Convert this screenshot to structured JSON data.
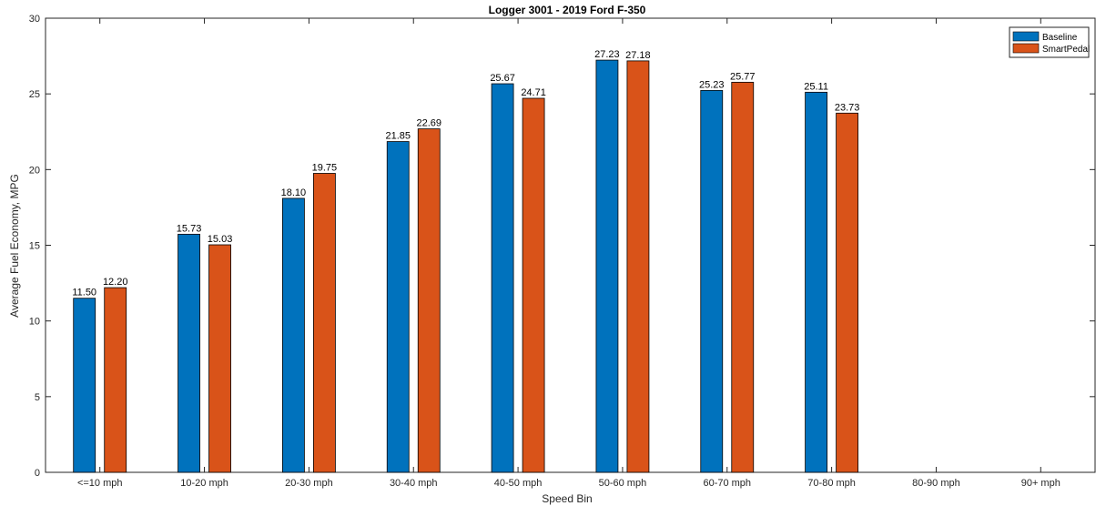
{
  "chart_data": {
    "type": "bar",
    "title": "Logger 3001 - 2019 Ford F-350",
    "xlabel": "Speed Bin",
    "ylabel": "Average Fuel Economy, MPG",
    "ylim": [
      0,
      30
    ],
    "yticks": [
      0,
      5,
      10,
      15,
      20,
      25,
      30
    ],
    "grid": false,
    "legend_position": "top-right",
    "categories": [
      "<=10 mph",
      "10-20 mph",
      "20-30 mph",
      "30-40 mph",
      "40-50 mph",
      "50-60 mph",
      "60-70 mph",
      "70-80 mph",
      "80-90 mph",
      "90+ mph"
    ],
    "series": [
      {
        "name": "Baseline",
        "color": "#0072BD",
        "values": [
          11.5,
          15.73,
          18.1,
          21.85,
          25.67,
          27.23,
          25.23,
          25.11,
          null,
          null
        ],
        "labels": [
          "11.50",
          "15.73",
          "18.10",
          "21.85",
          "25.67",
          "27.23",
          "25.23",
          "25.11",
          "",
          ""
        ]
      },
      {
        "name": "SmartPedal",
        "color": "#D95319",
        "values": [
          12.2,
          15.03,
          19.75,
          22.69,
          24.71,
          27.18,
          25.77,
          23.73,
          null,
          null
        ],
        "labels": [
          "12.20",
          "15.03",
          "19.75",
          "22.69",
          "24.71",
          "27.18",
          "25.77",
          "23.73",
          "",
          ""
        ]
      }
    ]
  }
}
